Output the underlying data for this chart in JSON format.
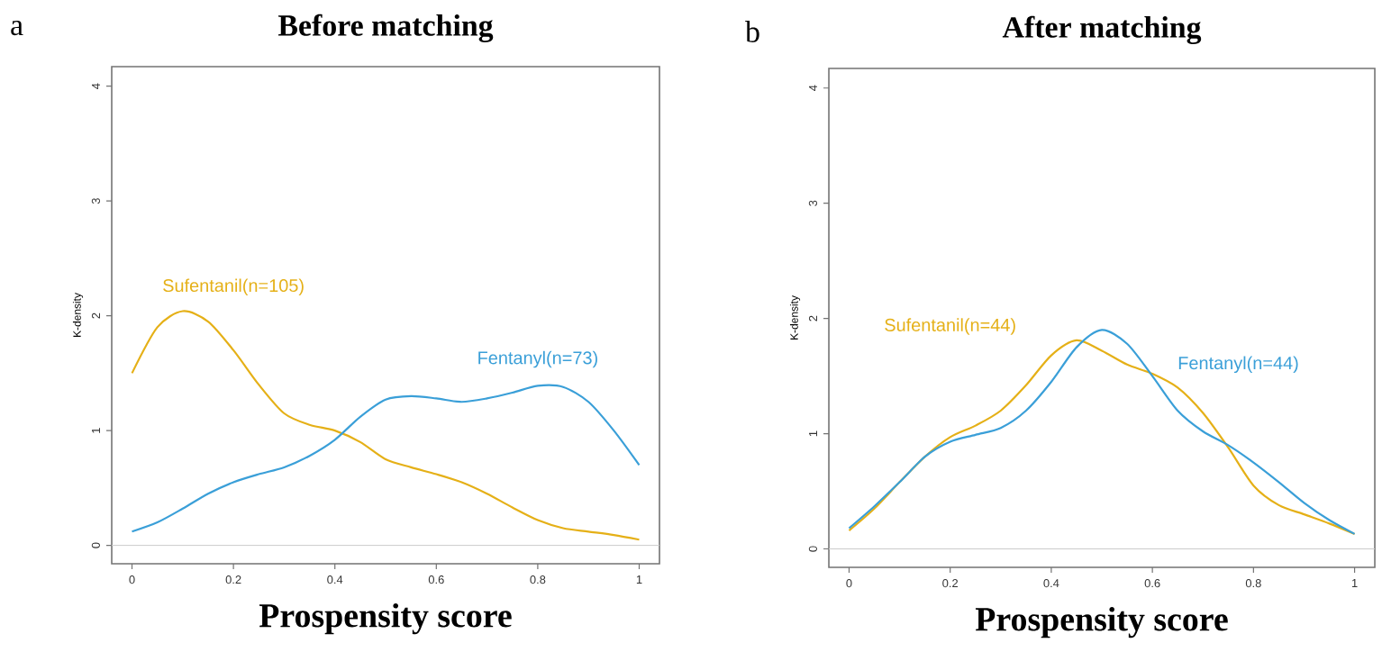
{
  "chart_data": [
    {
      "type": "line",
      "title": "Before matching",
      "xlabel": "Prospensity score",
      "ylabel": "K-density",
      "annotations": [
        "a"
      ],
      "x": [
        0,
        0.05,
        0.1,
        0.15,
        0.2,
        0.25,
        0.3,
        0.35,
        0.4,
        0.45,
        0.5,
        0.55,
        0.6,
        0.65,
        0.7,
        0.75,
        0.8,
        0.85,
        0.9,
        0.95,
        1
      ],
      "series": [
        {
          "name": "Sufentanil(n=105)",
          "color": "#e5b017",
          "values": [
            1.5,
            1.9,
            2.04,
            1.95,
            1.7,
            1.4,
            1.15,
            1.05,
            1.0,
            0.9,
            0.75,
            0.68,
            0.62,
            0.55,
            0.45,
            0.33,
            0.22,
            0.15,
            0.12,
            0.09,
            0.05
          ]
        },
        {
          "name": "Fentanyl(n=73)",
          "color": "#3a9fd8",
          "values": [
            0.12,
            0.2,
            0.32,
            0.45,
            0.55,
            0.62,
            0.68,
            0.78,
            0.92,
            1.12,
            1.27,
            1.3,
            1.28,
            1.25,
            1.28,
            1.33,
            1.39,
            1.38,
            1.25,
            1.0,
            0.7
          ]
        }
      ],
      "xlim": [
        -0.04,
        1.04
      ],
      "ylim": [
        -0.16,
        4.17
      ],
      "xticks": [
        0,
        0.2,
        0.4,
        0.6,
        0.8,
        1
      ],
      "yticks": [
        0,
        1,
        2,
        3,
        4
      ],
      "ref_lines": [
        {
          "axis": "y",
          "value": 0,
          "color": "#cccccc"
        }
      ]
    },
    {
      "type": "line",
      "title": "After matching",
      "xlabel": "Prospensity score",
      "ylabel": "K-density",
      "annotations": [
        "b"
      ],
      "x": [
        0,
        0.05,
        0.1,
        0.15,
        0.2,
        0.25,
        0.3,
        0.35,
        0.4,
        0.45,
        0.5,
        0.55,
        0.6,
        0.65,
        0.7,
        0.75,
        0.8,
        0.85,
        0.9,
        0.95,
        1
      ],
      "series": [
        {
          "name": "Sufentanil(n=44)",
          "color": "#e5b017",
          "values": [
            0.16,
            0.35,
            0.58,
            0.8,
            0.97,
            1.07,
            1.2,
            1.42,
            1.68,
            1.81,
            1.72,
            1.6,
            1.52,
            1.4,
            1.18,
            0.88,
            0.55,
            0.38,
            0.3,
            0.22,
            0.13
          ]
        },
        {
          "name": "Fentanyl(n=44)",
          "color": "#3a9fd8",
          "values": [
            0.18,
            0.37,
            0.58,
            0.8,
            0.93,
            0.99,
            1.05,
            1.2,
            1.45,
            1.75,
            1.9,
            1.78,
            1.5,
            1.2,
            1.02,
            0.9,
            0.75,
            0.58,
            0.4,
            0.25,
            0.13
          ]
        }
      ],
      "xlim": [
        -0.04,
        1.04
      ],
      "ylim": [
        -0.16,
        4.17
      ],
      "xticks": [
        0,
        0.2,
        0.4,
        0.6,
        0.8,
        1
      ],
      "yticks": [
        0,
        1,
        2,
        3,
        4
      ],
      "ref_lines": [
        {
          "axis": "y",
          "value": 0,
          "color": "#cccccc"
        }
      ]
    }
  ]
}
